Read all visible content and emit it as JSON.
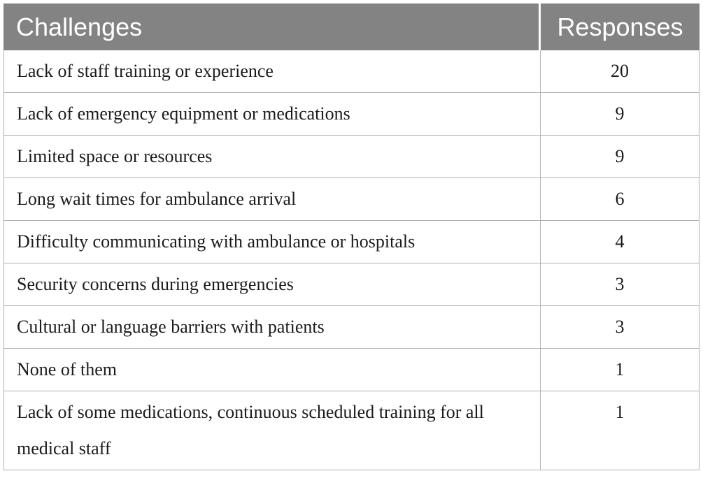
{
  "table": {
    "columns": [
      "Challenges",
      "Responses"
    ],
    "rows": [
      {
        "challenge": "Lack of staff training or experience",
        "responses": "20"
      },
      {
        "challenge": "Lack of emergency equipment or medications",
        "responses": "9"
      },
      {
        "challenge": "Limited space or resources",
        "responses": "9"
      },
      {
        "challenge": "Long wait times for ambulance arrival",
        "responses": "6"
      },
      {
        "challenge": "Difficulty communicating with ambulance or hospitals",
        "responses": "4"
      },
      {
        "challenge": "Security concerns during emergencies",
        "responses": "3"
      },
      {
        "challenge": "Cultural or language barriers with patients",
        "responses": "3"
      },
      {
        "challenge": "None of them",
        "responses": "1"
      },
      {
        "challenge": "Lack of some medications, continuous scheduled training for all medical staff",
        "responses": "1"
      }
    ]
  },
  "colors": {
    "header_background": "#838383",
    "header_text": "#ffffff",
    "border": "#b0b0b0",
    "body_text": "#1b1b1b",
    "page_background": "#ffffff"
  },
  "chart_data": {
    "type": "table",
    "columns": [
      "Challenges",
      "Responses"
    ],
    "categories": [
      "Lack of staff training or experience",
      "Lack of emergency equipment or medications",
      "Limited space or resources",
      "Long wait times for ambulance arrival",
      "Difficulty communicating with ambulance or hospitals",
      "Security concerns during emergencies",
      "Cultural or language barriers with patients",
      "None of them",
      "Lack of some medications, continuous scheduled training for all medical staff"
    ],
    "values": [
      20,
      9,
      9,
      6,
      4,
      3,
      3,
      1,
      1
    ]
  }
}
